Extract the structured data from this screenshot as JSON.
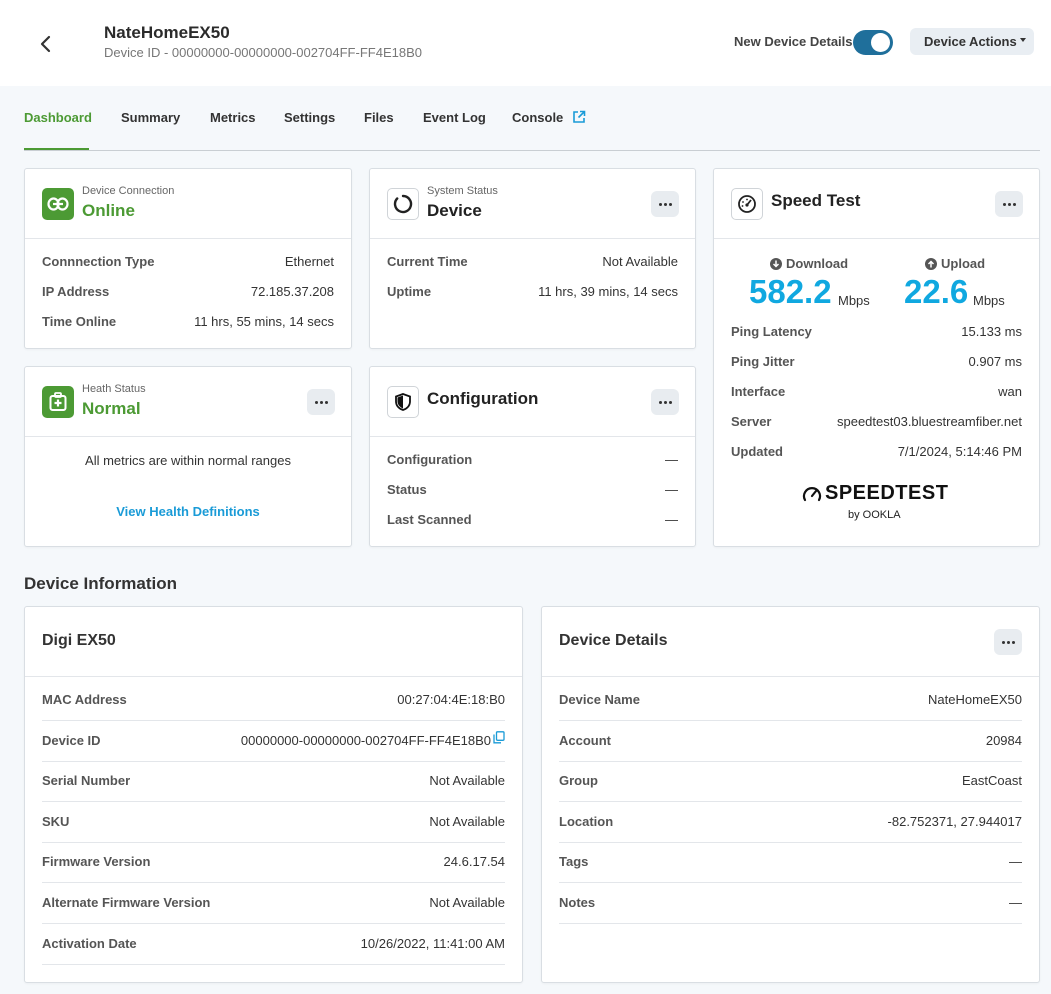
{
  "header": {
    "title": "NateHomeEX50",
    "device_id_line": "Device ID - 00000000-00000000-002704FF-FF4E18B0",
    "toggle_label": "New Device Details",
    "actions_label": "Device Actions"
  },
  "tabs": [
    {
      "label": "Dashboard"
    },
    {
      "label": "Summary"
    },
    {
      "label": "Metrics"
    },
    {
      "label": "Settings"
    },
    {
      "label": "Files"
    },
    {
      "label": "Event Log"
    },
    {
      "label": "Console"
    }
  ],
  "connection": {
    "small": "Device Connection",
    "status": "Online",
    "rows": [
      {
        "label": "Connnection Type",
        "value": "Ethernet"
      },
      {
        "label": "IP Address",
        "value": "72.185.37.208"
      },
      {
        "label": "Time Online",
        "value": "11 hrs, 55 mins, 14 secs"
      }
    ]
  },
  "system": {
    "small": "System Status",
    "title": "Device",
    "rows": [
      {
        "label": "Current Time",
        "value": "Not Available"
      },
      {
        "label": "Uptime",
        "value": "11 hrs, 39 mins, 14 secs"
      }
    ]
  },
  "speedtest": {
    "title": "Speed Test",
    "download_label": "Download",
    "download_value": "582.2",
    "upload_label": "Upload",
    "upload_value": "22.6",
    "unit": "Mbps",
    "rows": [
      {
        "label": "Ping Latency",
        "value": "15.133 ms"
      },
      {
        "label": "Ping Jitter",
        "value": "0.907 ms"
      },
      {
        "label": "Interface",
        "value": "wan"
      },
      {
        "label": "Server",
        "value": "speedtest03.bluestreamfiber.net"
      },
      {
        "label": "Updated",
        "value": "7/1/2024, 5:14:46 PM"
      }
    ],
    "logo_text": "SPEEDTEST",
    "logo_by": "by OOKLA"
  },
  "health": {
    "small": "Heath Status",
    "status": "Normal",
    "message": "All metrics are within normal ranges",
    "link": "View Health Definitions"
  },
  "configuration": {
    "title": "Configuration",
    "rows": [
      {
        "label": "Configuration",
        "value": "—"
      },
      {
        "label": "Status",
        "value": "—"
      },
      {
        "label": "Last Scanned",
        "value": "—"
      }
    ]
  },
  "device_info": {
    "section_title": "Device Information",
    "card_title": "Digi EX50",
    "rows": [
      {
        "label": "MAC Address",
        "value": "00:27:04:4E:18:B0"
      },
      {
        "label": "Device ID",
        "value": "00000000-00000000-002704FF-FF4E18B0"
      },
      {
        "label": "Serial Number",
        "value": "Not Available"
      },
      {
        "label": "SKU",
        "value": "Not Available"
      },
      {
        "label": "Firmware Version",
        "value": "24.6.17.54"
      },
      {
        "label": "Alternate Firmware Version",
        "value": "Not Available"
      },
      {
        "label": "Activation Date",
        "value": "10/26/2022, 11:41:00 AM"
      }
    ]
  },
  "device_details": {
    "card_title": "Device Details",
    "rows": [
      {
        "label": "Device Name",
        "value": "NateHomeEX50"
      },
      {
        "label": "Account",
        "value": "20984"
      },
      {
        "label": "Group",
        "value": "EastCoast"
      },
      {
        "label": "Location",
        "value": "-82.752371, 27.944017"
      },
      {
        "label": "Tags",
        "value": "—"
      },
      {
        "label": "Notes",
        "value": "—"
      }
    ]
  },
  "colors": {
    "accent_green": "#4c9a34",
    "speed_blue": "#10a8e0",
    "toggle_blue": "#1f6f9b",
    "link_blue": "#1a9bd7"
  }
}
